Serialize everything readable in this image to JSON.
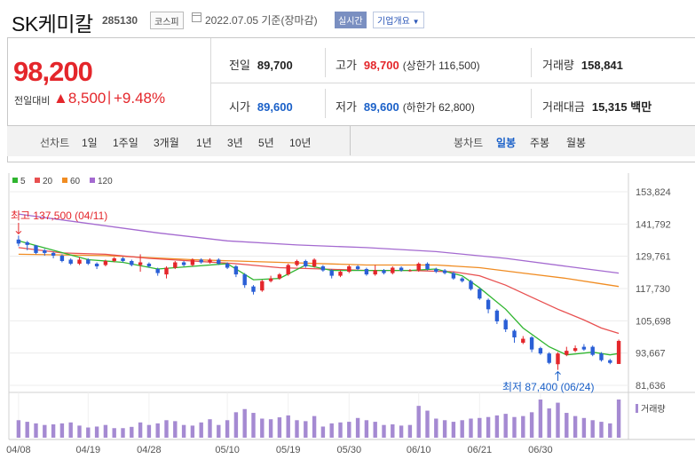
{
  "header": {
    "name": "SK케미칼",
    "code": "285130",
    "market": "코스피",
    "date_text": "2022.07.05 기준(장마감)",
    "realtime_label": "실시간",
    "company_info_label": "기업개요"
  },
  "quote": {
    "price": "98,200",
    "compare_label": "전일대비",
    "change": "8,500",
    "separator": "|",
    "change_pct": "+9.48%",
    "prev_label": "전일",
    "prev_value": "89,700",
    "high_label": "고가",
    "high_value": "98,700",
    "upper_limit": "(상한가 116,500)",
    "volume_label": "거래량",
    "volume_value": "158,841",
    "open_label": "시가",
    "open_value": "89,600",
    "low_label": "저가",
    "low_value": "89,600",
    "lower_limit": "(하한가 62,800)",
    "amount_label": "거래대금",
    "amount_value": "15,315",
    "amount_unit": "백만"
  },
  "tabs": {
    "line_chart_label": "선차트",
    "periods": [
      "1일",
      "1주일",
      "3개월",
      "1년",
      "3년",
      "5년",
      "10년"
    ],
    "candle_chart_label": "봉차트",
    "candle_periods": [
      "일봉",
      "주봉",
      "월봉"
    ],
    "selected_candle": "일봉"
  },
  "chart_data": {
    "type": "candlestick",
    "y_ticks": [
      "153,824",
      "141,792",
      "129,761",
      "117,730",
      "105,698",
      "93,667",
      "81,636"
    ],
    "y_tick_values": [
      153824,
      141792,
      129761,
      117730,
      105698,
      93667,
      81636
    ],
    "x_ticks": [
      "04/08",
      "04/19",
      "04/28",
      "05/10",
      "05/19",
      "05/30",
      "06/10",
      "06/21",
      "06/30"
    ],
    "legend": [
      {
        "name": "5",
        "color": "#2fb52f"
      },
      {
        "name": "20",
        "color": "#e85050"
      },
      {
        "name": "60",
        "color": "#f08c22"
      },
      {
        "name": "120",
        "color": "#a46ad0"
      }
    ],
    "max_label": "최고 137,500 (04/11)",
    "min_label": "최저 87,400 (06/24)",
    "volume_label": "거래량",
    "colors": {
      "up": "#e4262b",
      "down": "#2a5fd6",
      "volume": "#a58ad2"
    },
    "candles": [
      {
        "o": 136000,
        "c": 134500,
        "h": 137500,
        "l": 133500
      },
      {
        "o": 135000,
        "c": 134000,
        "h": 135500,
        "l": 132000
      },
      {
        "o": 133800,
        "c": 131000,
        "h": 134000,
        "l": 130500
      },
      {
        "o": 132000,
        "c": 131000,
        "h": 132500,
        "l": 130000
      },
      {
        "o": 131000,
        "c": 130000,
        "h": 131500,
        "l": 129000
      },
      {
        "o": 130000,
        "c": 128000,
        "h": 130500,
        "l": 127500
      },
      {
        "o": 128500,
        "c": 127000,
        "h": 129000,
        "l": 126500
      },
      {
        "o": 127000,
        "c": 128500,
        "h": 129500,
        "l": 126500
      },
      {
        "o": 128500,
        "c": 127000,
        "h": 129000,
        "l": 126500
      },
      {
        "o": 127000,
        "c": 126000,
        "h": 127500,
        "l": 125000
      },
      {
        "o": 126500,
        "c": 128000,
        "h": 128500,
        "l": 126000
      },
      {
        "o": 128000,
        "c": 129000,
        "h": 129500,
        "l": 127500
      },
      {
        "o": 129000,
        "c": 128000,
        "h": 129500,
        "l": 127500
      },
      {
        "o": 128000,
        "c": 126500,
        "h": 128500,
        "l": 126000
      },
      {
        "o": 126500,
        "c": 127500,
        "h": 130500,
        "l": 124000
      },
      {
        "o": 127000,
        "c": 126000,
        "h": 127500,
        "l": 125500
      },
      {
        "o": 125000,
        "c": 123500,
        "h": 125500,
        "l": 122500
      },
      {
        "o": 123000,
        "c": 125500,
        "h": 126000,
        "l": 121500
      },
      {
        "o": 125500,
        "c": 127500,
        "h": 128000,
        "l": 125000
      },
      {
        "o": 127500,
        "c": 126500,
        "h": 128000,
        "l": 126000
      },
      {
        "o": 126500,
        "c": 128500,
        "h": 129000,
        "l": 126000
      },
      {
        "o": 128500,
        "c": 127500,
        "h": 129000,
        "l": 127000
      },
      {
        "o": 127500,
        "c": 128500,
        "h": 129000,
        "l": 127000
      },
      {
        "o": 128500,
        "c": 127000,
        "h": 129000,
        "l": 126500
      },
      {
        "o": 127000,
        "c": 125500,
        "h": 127500,
        "l": 125000
      },
      {
        "o": 126000,
        "c": 123000,
        "h": 126500,
        "l": 122000
      },
      {
        "o": 123000,
        "c": 119000,
        "h": 123500,
        "l": 118000
      },
      {
        "o": 118500,
        "c": 116500,
        "h": 119000,
        "l": 115500
      },
      {
        "o": 117000,
        "c": 120500,
        "h": 121000,
        "l": 116500
      },
      {
        "o": 120500,
        "c": 121500,
        "h": 122500,
        "l": 120000
      },
      {
        "o": 121500,
        "c": 123000,
        "h": 123500,
        "l": 121000
      },
      {
        "o": 123000,
        "c": 126500,
        "h": 127000,
        "l": 122500
      },
      {
        "o": 126500,
        "c": 128000,
        "h": 128500,
        "l": 126000
      },
      {
        "o": 128000,
        "c": 126000,
        "h": 128500,
        "l": 125500
      },
      {
        "o": 126000,
        "c": 128500,
        "h": 129000,
        "l": 125500
      },
      {
        "o": 126000,
        "c": 124500,
        "h": 126500,
        "l": 124000
      },
      {
        "o": 124500,
        "c": 122500,
        "h": 125000,
        "l": 121500
      },
      {
        "o": 122500,
        "c": 124000,
        "h": 124500,
        "l": 122000
      },
      {
        "o": 124000,
        "c": 126000,
        "h": 126500,
        "l": 123500
      },
      {
        "o": 126000,
        "c": 125000,
        "h": 126500,
        "l": 124500
      },
      {
        "o": 125000,
        "c": 123000,
        "h": 125500,
        "l": 122500
      },
      {
        "o": 123000,
        "c": 124500,
        "h": 126500,
        "l": 122500
      },
      {
        "o": 124500,
        "c": 123500,
        "h": 125000,
        "l": 123000
      },
      {
        "o": 123500,
        "c": 125500,
        "h": 126000,
        "l": 123000
      },
      {
        "o": 125500,
        "c": 124500,
        "h": 126000,
        "l": 124000
      },
      {
        "o": 124500,
        "c": 124500,
        "h": 125000,
        "l": 124000
      },
      {
        "o": 124500,
        "c": 127000,
        "h": 127500,
        "l": 124000
      },
      {
        "o": 127000,
        "c": 125000,
        "h": 127500,
        "l": 124500
      },
      {
        "o": 125000,
        "c": 124000,
        "h": 125500,
        "l": 123500
      },
      {
        "o": 124500,
        "c": 123500,
        "h": 125000,
        "l": 123000
      },
      {
        "o": 123500,
        "c": 121500,
        "h": 124000,
        "l": 121000
      },
      {
        "o": 121500,
        "c": 120500,
        "h": 122000,
        "l": 120000
      },
      {
        "o": 120500,
        "c": 117500,
        "h": 121000,
        "l": 117000
      },
      {
        "o": 117500,
        "c": 114000,
        "h": 118000,
        "l": 113500
      },
      {
        "o": 113500,
        "c": 110000,
        "h": 114000,
        "l": 108500
      },
      {
        "o": 109500,
        "c": 105500,
        "h": 110000,
        "l": 104500
      },
      {
        "o": 106000,
        "c": 102500,
        "h": 106500,
        "l": 101500
      },
      {
        "o": 102000,
        "c": 99500,
        "h": 102500,
        "l": 97500
      },
      {
        "o": 97500,
        "c": 99000,
        "h": 100000,
        "l": 97000
      },
      {
        "o": 99500,
        "c": 95000,
        "h": 100000,
        "l": 94000
      },
      {
        "o": 95500,
        "c": 93500,
        "h": 96000,
        "l": 93000
      },
      {
        "o": 93500,
        "c": 90000,
        "h": 94000,
        "l": 89500
      },
      {
        "o": 89500,
        "c": 93500,
        "h": 94000,
        "l": 87400
      },
      {
        "o": 93000,
        "c": 94500,
        "h": 96000,
        "l": 92500
      },
      {
        "o": 94500,
        "c": 95500,
        "h": 96500,
        "l": 94000
      },
      {
        "o": 96000,
        "c": 95000,
        "h": 97000,
        "l": 94500
      },
      {
        "o": 96000,
        "c": 93000,
        "h": 96500,
        "l": 92500
      },
      {
        "o": 93500,
        "c": 91000,
        "h": 94000,
        "l": 90500
      },
      {
        "o": 91000,
        "c": 90000,
        "h": 91500,
        "l": 89500
      },
      {
        "o": 89600,
        "c": 98200,
        "h": 98700,
        "l": 89600
      }
    ],
    "volume": [
      55,
      50,
      45,
      40,
      42,
      45,
      48,
      38,
      32,
      35,
      40,
      30,
      30,
      34,
      48,
      40,
      45,
      55,
      52,
      40,
      38,
      48,
      58,
      40,
      55,
      80,
      90,
      78,
      60,
      58,
      64,
      70,
      55,
      52,
      68,
      35,
      45,
      48,
      50,
      62,
      55,
      50,
      40,
      42,
      38,
      40,
      100,
      85,
      60,
      55,
      50,
      55,
      60,
      62,
      65,
      70,
      75,
      65,
      68,
      80,
      120,
      92,
      110,
      78,
      68,
      62,
      55,
      50,
      45,
      120
    ],
    "ma5_points": [
      [
        0,
        135500
      ],
      [
        4,
        132000
      ],
      [
        8,
        128500
      ],
      [
        12,
        127500
      ],
      [
        16,
        125000
      ],
      [
        20,
        126000
      ],
      [
        24,
        127000
      ],
      [
        27,
        121000
      ],
      [
        30,
        121500
      ],
      [
        33,
        126500
      ],
      [
        36,
        124500
      ],
      [
        40,
        124500
      ],
      [
        45,
        124500
      ],
      [
        48,
        125000
      ],
      [
        51,
        122500
      ],
      [
        53,
        118000
      ],
      [
        56,
        110000
      ],
      [
        58,
        103000
      ],
      [
        61,
        96000
      ],
      [
        63,
        93000
      ],
      [
        66,
        94000
      ],
      [
        68,
        93000
      ],
      [
        69,
        93500
      ]
    ],
    "ma20_points": [
      [
        0,
        133000
      ],
      [
        5,
        131000
      ],
      [
        10,
        130500
      ],
      [
        15,
        129000
      ],
      [
        20,
        128000
      ],
      [
        25,
        127000
      ],
      [
        30,
        125500
      ],
      [
        35,
        125000
      ],
      [
        40,
        124500
      ],
      [
        45,
        124500
      ],
      [
        50,
        124000
      ],
      [
        53,
        122500
      ],
      [
        56,
        119000
      ],
      [
        59,
        114500
      ],
      [
        62,
        110000
      ],
      [
        65,
        106000
      ],
      [
        67,
        103000
      ],
      [
        69,
        101000
      ]
    ],
    "ma60_points": [
      [
        0,
        130500
      ],
      [
        10,
        130000
      ],
      [
        20,
        128500
      ],
      [
        30,
        127500
      ],
      [
        40,
        126500
      ],
      [
        48,
        126500
      ],
      [
        53,
        125500
      ],
      [
        58,
        123500
      ],
      [
        63,
        121500
      ],
      [
        67,
        119500
      ],
      [
        69,
        118500
      ]
    ],
    "ma120_points": [
      [
        0,
        145500
      ],
      [
        8,
        142000
      ],
      [
        16,
        138500
      ],
      [
        24,
        135500
      ],
      [
        32,
        134000
      ],
      [
        40,
        133000
      ],
      [
        48,
        131500
      ],
      [
        56,
        129000
      ],
      [
        63,
        126000
      ],
      [
        69,
        123500
      ]
    ]
  }
}
